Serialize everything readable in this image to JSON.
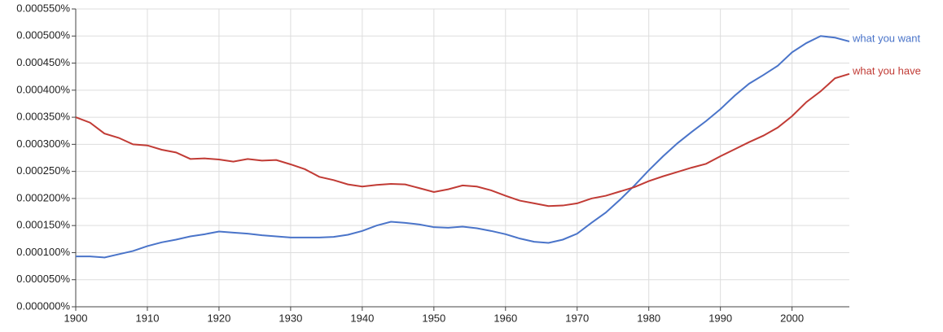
{
  "chart_data": {
    "type": "line",
    "x": [
      1900,
      1902,
      1904,
      1906,
      1908,
      1910,
      1912,
      1914,
      1916,
      1918,
      1920,
      1922,
      1924,
      1926,
      1928,
      1930,
      1932,
      1934,
      1936,
      1938,
      1940,
      1942,
      1944,
      1946,
      1948,
      1950,
      1952,
      1954,
      1956,
      1958,
      1960,
      1962,
      1964,
      1966,
      1968,
      1970,
      1972,
      1974,
      1976,
      1978,
      1980,
      1982,
      1984,
      1986,
      1988,
      1990,
      1992,
      1994,
      1996,
      1998,
      2000,
      2002,
      2004,
      2006,
      2008
    ],
    "series": [
      {
        "name": "what you want",
        "color": "#4a74c9",
        "values": [
          9.3e-05,
          9.3e-05,
          9.1e-05,
          9.7e-05,
          0.000103,
          0.000112,
          0.000119,
          0.000124,
          0.00013,
          0.000134,
          0.000139,
          0.000137,
          0.000135,
          0.000132,
          0.00013,
          0.000128,
          0.000128,
          0.000128,
          0.000129,
          0.000133,
          0.00014,
          0.00015,
          0.000157,
          0.000155,
          0.000152,
          0.000147,
          0.000146,
          0.000148,
          0.000145,
          0.00014,
          0.000134,
          0.000126,
          0.00012,
          0.000118,
          0.000124,
          0.000135,
          0.000155,
          0.000174,
          0.000198,
          0.000224,
          0.000252,
          0.000278,
          0.000302,
          0.000323,
          0.000343,
          0.000365,
          0.00039,
          0.000412,
          0.000428,
          0.000445,
          0.00047,
          0.000487,
          0.0005,
          0.000497,
          0.00049
        ]
      },
      {
        "name": "what you have",
        "color": "#c13b35",
        "values": [
          0.00035,
          0.00034,
          0.00032,
          0.000312,
          0.0003,
          0.000298,
          0.00029,
          0.000285,
          0.000273,
          0.000274,
          0.000272,
          0.000268,
          0.000273,
          0.00027,
          0.000271,
          0.000263,
          0.000254,
          0.00024,
          0.000234,
          0.000226,
          0.000222,
          0.000225,
          0.000227,
          0.000226,
          0.000219,
          0.000212,
          0.000217,
          0.000224,
          0.000222,
          0.000215,
          0.000205,
          0.000196,
          0.000191,
          0.000186,
          0.000187,
          0.000191,
          0.0002,
          0.000205,
          0.000213,
          0.000221,
          0.000232,
          0.000241,
          0.000249,
          0.000257,
          0.000264,
          0.000278,
          0.000291,
          0.000304,
          0.000316,
          0.000331,
          0.000352,
          0.000378,
          0.000398,
          0.000422,
          0.00043
        ]
      }
    ],
    "xlim": [
      1900,
      2008
    ],
    "xticks": [
      1900,
      1910,
      1920,
      1930,
      1940,
      1950,
      1960,
      1970,
      1980,
      1990,
      2000
    ],
    "ylim": [
      0,
      0.00055
    ],
    "yticks": [
      {
        "value": 0,
        "label": "0.000000%"
      },
      {
        "value": 5e-05,
        "label": "0.000050%"
      },
      {
        "value": 0.0001,
        "label": "0.000100%"
      },
      {
        "value": 0.00015,
        "label": "0.000150%"
      },
      {
        "value": 0.0002,
        "label": "0.000200%"
      },
      {
        "value": 0.00025,
        "label": "0.000250%"
      },
      {
        "value": 0.0003,
        "label": "0.000300%"
      },
      {
        "value": 0.00035,
        "label": "0.000350%"
      },
      {
        "value": 0.0004,
        "label": "0.000400%"
      },
      {
        "value": 0.00045,
        "label": "0.000450%"
      },
      {
        "value": 0.0005,
        "label": "0.000500%"
      },
      {
        "value": 0.00055,
        "label": "0.000550%"
      }
    ],
    "grid": true
  }
}
